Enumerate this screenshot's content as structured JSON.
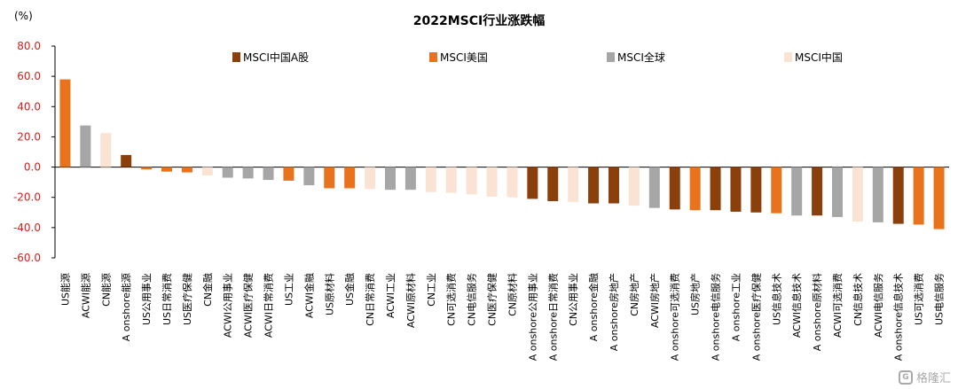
{
  "chart_data": {
    "type": "bar",
    "title": "2022MSCI行业涨跌幅",
    "unit": "(%)",
    "ylim": [
      -60,
      80
    ],
    "yticks": [
      "80.0",
      "60.0",
      "40.0",
      "20.0",
      "0.0",
      "-20.0",
      "-40.0",
      "-60.0"
    ],
    "ytick_values": [
      80,
      60,
      40,
      20,
      0,
      -20,
      -40,
      -60
    ],
    "legend_position": "top",
    "legend": [
      {
        "key": "a",
        "name": "MSCI中国A股",
        "color": "#8b3f0b"
      },
      {
        "key": "us",
        "name": "MSCI美国",
        "color": "#e9731c"
      },
      {
        "key": "global",
        "name": "MSCI全球",
        "color": "#a6a6a6"
      },
      {
        "key": "cn",
        "name": "MSCI中国",
        "color": "#fbe3d4"
      }
    ],
    "bars": [
      {
        "label": "US能源",
        "group": "us",
        "value": 58
      },
      {
        "label": "ACWI能源",
        "group": "global",
        "value": 27.5
      },
      {
        "label": "CN能源",
        "group": "cn",
        "value": 22.5
      },
      {
        "label": "A onshore能源",
        "group": "a",
        "value": 8
      },
      {
        "label": "US公用事业",
        "group": "us",
        "value": -1.5
      },
      {
        "label": "US日常消费",
        "group": "us",
        "value": -3
      },
      {
        "label": "US医疗保健",
        "group": "us",
        "value": -3.5
      },
      {
        "label": "CN金融",
        "group": "cn",
        "value": -5.5
      },
      {
        "label": "ACWI公用事业",
        "group": "global",
        "value": -7
      },
      {
        "label": "ACWI医疗保健",
        "group": "global",
        "value": -7.5
      },
      {
        "label": "ACWI日常消费",
        "group": "global",
        "value": -8.5
      },
      {
        "label": "US工业",
        "group": "us",
        "value": -9
      },
      {
        "label": "ACWI金融",
        "group": "global",
        "value": -12
      },
      {
        "label": "US原材料",
        "group": "us",
        "value": -14
      },
      {
        "label": "US金融",
        "group": "us",
        "value": -14
      },
      {
        "label": "CN日常消费",
        "group": "cn",
        "value": -14.5
      },
      {
        "label": "ACWI工业",
        "group": "global",
        "value": -15
      },
      {
        "label": "ACWI原材料",
        "group": "global",
        "value": -15
      },
      {
        "label": "CN工业",
        "group": "cn",
        "value": -16.5
      },
      {
        "label": "CN可选消费",
        "group": "cn",
        "value": -17
      },
      {
        "label": "CN电信服务",
        "group": "cn",
        "value": -18
      },
      {
        "label": "CN医疗保健",
        "group": "cn",
        "value": -19.5
      },
      {
        "label": "CN原材料",
        "group": "cn",
        "value": -20
      },
      {
        "label": "A onshore公用事业",
        "group": "a",
        "value": -21
      },
      {
        "label": "A onshore日常消费",
        "group": "a",
        "value": -22.5
      },
      {
        "label": "CN公用事业",
        "group": "cn",
        "value": -23
      },
      {
        "label": "A onshore金融",
        "group": "a",
        "value": -24
      },
      {
        "label": "A onshore房地产",
        "group": "a",
        "value": -24
      },
      {
        "label": "CN房地产",
        "group": "cn",
        "value": -25.5
      },
      {
        "label": "ACWI房地产",
        "group": "global",
        "value": -27
      },
      {
        "label": "A onshore可选消费",
        "group": "a",
        "value": -28
      },
      {
        "label": "US房地产",
        "group": "us",
        "value": -28.5
      },
      {
        "label": "A onshore电信服务",
        "group": "a",
        "value": -28.5
      },
      {
        "label": "A onshore工业",
        "group": "a",
        "value": -29.5
      },
      {
        "label": "A onshore医疗保健",
        "group": "a",
        "value": -30
      },
      {
        "label": "US信息技术",
        "group": "us",
        "value": -30.5
      },
      {
        "label": "ACWI信息技术",
        "group": "global",
        "value": -32
      },
      {
        "label": "A onshore原材料",
        "group": "a",
        "value": -32
      },
      {
        "label": "ACWI可选消费",
        "group": "global",
        "value": -33
      },
      {
        "label": "CN信息技术",
        "group": "cn",
        "value": -36
      },
      {
        "label": "ACWI电信服务",
        "group": "global",
        "value": -36.5
      },
      {
        "label": "A onshore信息技术",
        "group": "a",
        "value": -37.5
      },
      {
        "label": "US可选消费",
        "group": "us",
        "value": -38
      },
      {
        "label": "US电信服务",
        "group": "us",
        "value": -41
      }
    ]
  },
  "watermark": {
    "text": "格隆汇",
    "logo": "G"
  }
}
